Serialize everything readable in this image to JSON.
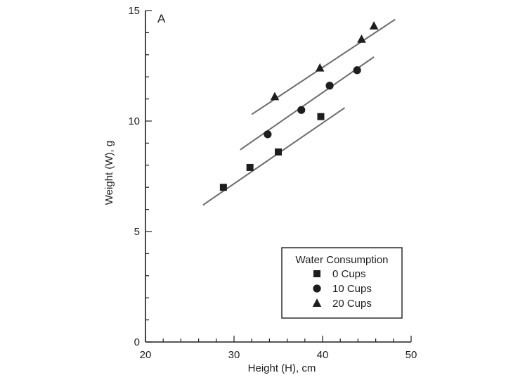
{
  "chart_data": {
    "type": "scatter",
    "panel_label": "A",
    "title": "",
    "xlabel": "Height (H), cm",
    "ylabel": "Weight (W), g",
    "xlim": [
      20,
      50
    ],
    "ylim": [
      0,
      15
    ],
    "xticks": [
      "20",
      "30",
      "40",
      "50"
    ],
    "yticks": [
      "0",
      "5",
      "10",
      "15"
    ],
    "legend": {
      "title": "Water Consumption",
      "placement": "bottom-right"
    },
    "series": [
      {
        "name": "0 Cups",
        "marker": "square",
        "points": [
          {
            "x": 28.8,
            "y": 7.0
          },
          {
            "x": 31.8,
            "y": 7.9
          },
          {
            "x": 35.0,
            "y": 8.6
          },
          {
            "x": 39.8,
            "y": 10.2
          }
        ],
        "fit_line": {
          "x": [
            26.5,
            42.5
          ],
          "y": [
            6.2,
            10.6
          ]
        }
      },
      {
        "name": "10 Cups",
        "marker": "circle",
        "points": [
          {
            "x": 33.8,
            "y": 9.4
          },
          {
            "x": 37.6,
            "y": 10.5
          },
          {
            "x": 40.8,
            "y": 11.6
          },
          {
            "x": 43.9,
            "y": 12.3
          }
        ],
        "fit_line": {
          "x": [
            30.7,
            45.8
          ],
          "y": [
            8.7,
            12.9
          ]
        }
      },
      {
        "name": "20 Cups",
        "marker": "triangle",
        "points": [
          {
            "x": 34.6,
            "y": 11.1
          },
          {
            "x": 39.7,
            "y": 12.4
          },
          {
            "x": 44.4,
            "y": 13.7
          },
          {
            "x": 45.8,
            "y": 14.3
          }
        ],
        "fit_line": {
          "x": [
            32.0,
            48.2
          ],
          "y": [
            10.3,
            14.6
          ]
        }
      }
    ]
  },
  "colors": {
    "ink": "#1e1e1e",
    "fit_line": "#6b6b6b",
    "background": "#ffffff"
  }
}
